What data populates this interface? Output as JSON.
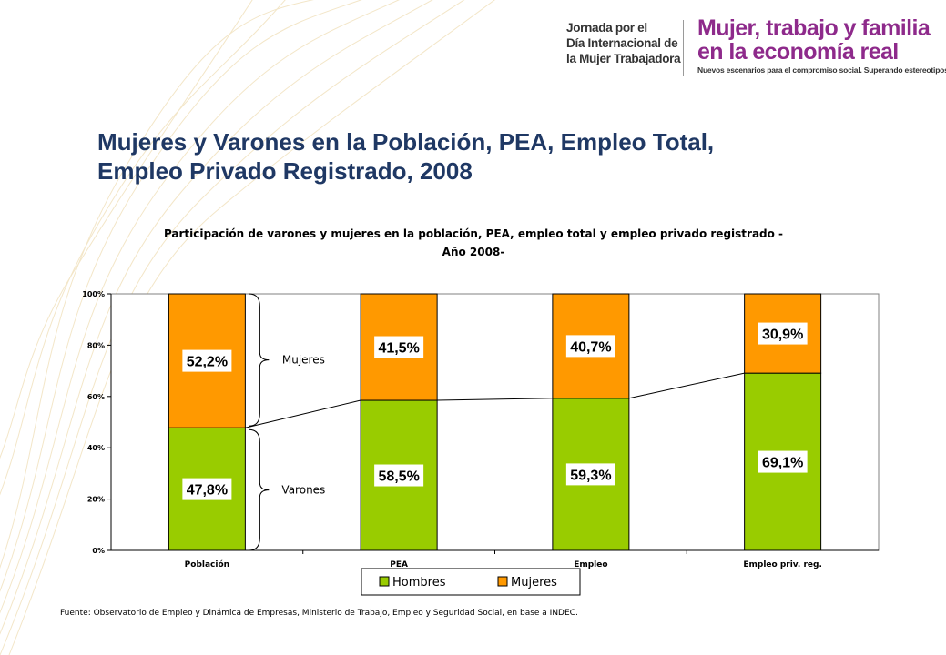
{
  "header": {
    "event_lines": [
      "Jornada por el",
      "Día Internacional de",
      "la Mujer Trabajadora"
    ],
    "brand_title_line1": "Mujer, trabajo y familia",
    "brand_title_line2": "en la economía real",
    "brand_subtitle": "Nuevos escenarios para el compromiso social. Superando estereotipos."
  },
  "slide_title": {
    "line1": "Mujeres y Varones en la Población, PEA, Empleo Total,",
    "line2": "Empleo Privado Registrado, 2008"
  },
  "chart_data": {
    "type": "bar",
    "stacked": true,
    "title_line1": "Participación de varones y mujeres en la población, PEA, empleo total y empleo privado registrado -",
    "title_line2": "Año 2008-",
    "categories": [
      "Población",
      "PEA",
      "Empleo",
      "Empleo priv. reg."
    ],
    "series": [
      {
        "name": "Hombres",
        "color": "#99cc00",
        "values": [
          47.8,
          58.5,
          59.3,
          69.1
        ],
        "labels": [
          "47,8%",
          "58,5%",
          "59,3%",
          "69,1%"
        ]
      },
      {
        "name": "Mujeres",
        "color": "#ff9900",
        "values": [
          52.2,
          41.5,
          40.7,
          30.9
        ],
        "labels": [
          "52,2%",
          "41,5%",
          "40,7%",
          "30,9%"
        ]
      }
    ],
    "ylim": [
      0,
      100
    ],
    "y_ticks": [
      0,
      20,
      40,
      60,
      80,
      100
    ],
    "y_tick_labels": [
      "0%",
      "20%",
      "40%",
      "60%",
      "80%",
      "100%"
    ],
    "annotations": [
      "Mujeres",
      "Varones"
    ],
    "legend_position": "bottom",
    "grid": false
  },
  "source": "Fuente: Observatorio de Empleo y Dinámica de Empresas, Ministerio de Trabajo, Empleo y Seguridad Social, en base a INDEC."
}
